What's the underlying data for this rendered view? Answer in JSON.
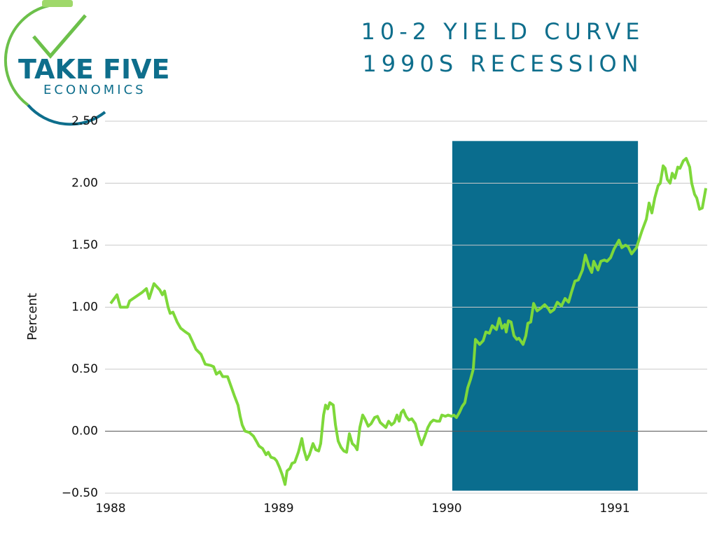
{
  "chart_data": {
    "type": "line",
    "title": "10-2 YIELD CURVE",
    "subtitle": "1990S RECESSION",
    "logo_text": [
      "TAKE FIVE",
      "ECONOMICS"
    ],
    "ylabel": "Percent",
    "xlim": [
      1988,
      1991.55
    ],
    "xticks": [
      1988,
      1989,
      1990,
      1991
    ],
    "ylim": [
      -0.5,
      2.5
    ],
    "yticks": [
      {
        "value": -0.5,
        "label": "−0.50"
      },
      {
        "value": 0,
        "label": "0.00"
      },
      {
        "value": 0.5,
        "label": "0.50"
      },
      {
        "value": 1,
        "label": "1.00"
      },
      {
        "value": 1.5,
        "label": "1.50"
      },
      {
        "value": 2,
        "label": "2.00"
      },
      {
        "value": 2.5,
        "label": "2.50"
      }
    ],
    "grid": true,
    "shaded_region": {
      "x": [
        1990.033,
        1991.138
      ],
      "y": [
        -0.48,
        2.34
      ],
      "color": "#0a6d8e"
    },
    "x": [
      1988.0,
      1988.038,
      1988.058,
      1988.1,
      1988.113,
      1988.188,
      1988.213,
      1988.229,
      1988.258,
      1988.292,
      1988.308,
      1988.321,
      1988.342,
      1988.354,
      1988.371,
      1988.396,
      1988.417,
      1988.446,
      1988.467,
      1988.488,
      1988.508,
      1988.538,
      1988.563,
      1988.596,
      1988.613,
      1988.629,
      1988.65,
      1988.667,
      1988.696,
      1988.717,
      1988.738,
      1988.758,
      1988.771,
      1988.783,
      1988.8,
      1988.825,
      1988.85,
      1988.867,
      1988.883,
      1988.904,
      1988.925,
      1988.938,
      1988.954,
      1988.975,
      1988.988,
      1989.004,
      1989.021,
      1989.038,
      1989.05,
      1989.067,
      1989.079,
      1989.096,
      1989.117,
      1989.138,
      1989.15,
      1989.167,
      1989.183,
      1989.204,
      1989.221,
      1989.238,
      1989.25,
      1989.267,
      1989.279,
      1989.292,
      1989.304,
      1989.325,
      1989.338,
      1989.354,
      1989.371,
      1989.388,
      1989.404,
      1989.421,
      1989.438,
      1989.454,
      1989.467,
      1989.483,
      1989.5,
      1989.513,
      1989.533,
      1989.55,
      1989.571,
      1989.588,
      1989.604,
      1989.621,
      1989.638,
      1989.654,
      1989.671,
      1989.688,
      1989.704,
      1989.717,
      1989.729,
      1989.742,
      1989.758,
      1989.775,
      1989.792,
      1989.813,
      1989.833,
      1989.85,
      1989.867,
      1989.888,
      1989.904,
      1989.921,
      1989.942,
      1989.958,
      1989.971,
      1989.992,
      1990.008,
      1990.029,
      1990.042,
      1990.058,
      1990.075,
      1990.092,
      1990.108,
      1990.125,
      1990.142,
      1990.158,
      1990.171,
      1990.196,
      1990.217,
      1990.233,
      1990.254,
      1990.271,
      1990.296,
      1990.313,
      1990.329,
      1990.346,
      1990.354,
      1990.367,
      1990.383,
      1990.4,
      1990.417,
      1990.429,
      1990.454,
      1990.471,
      1990.483,
      1990.5,
      1990.517,
      1990.538,
      1990.558,
      1990.583,
      1990.604,
      1990.617,
      1990.638,
      1990.658,
      1990.683,
      1990.704,
      1990.725,
      1990.742,
      1990.763,
      1990.783,
      1990.808,
      1990.825,
      1990.846,
      1990.863,
      1990.875,
      1990.9,
      1990.917,
      1990.938,
      1990.954,
      1990.975,
      1990.996,
      1991.025,
      1991.042,
      1991.063,
      1991.079,
      1991.1,
      1991.117,
      1991.129,
      1991.146,
      1991.163,
      1991.188,
      1991.204,
      1991.221,
      1991.238,
      1991.258,
      1991.271,
      1991.288,
      1991.3,
      1991.313,
      1991.329,
      1991.342,
      1991.358,
      1991.375,
      1991.388,
      1991.408,
      1991.425,
      1991.446,
      1991.458,
      1991.475,
      1991.488,
      1991.504,
      1991.521,
      1991.542
    ],
    "series": [
      {
        "color": "#7ed83a",
        "values": [
          1.03,
          1.1,
          1.0,
          1.0,
          1.05,
          1.12,
          1.15,
          1.07,
          1.19,
          1.14,
          1.1,
          1.13,
          1.0,
          0.95,
          0.96,
          0.88,
          0.83,
          0.8,
          0.78,
          0.72,
          0.66,
          0.62,
          0.54,
          0.53,
          0.52,
          0.46,
          0.48,
          0.44,
          0.44,
          0.36,
          0.28,
          0.21,
          0.12,
          0.05,
          0.0,
          -0.01,
          -0.04,
          -0.08,
          -0.12,
          -0.14,
          -0.19,
          -0.17,
          -0.21,
          -0.22,
          -0.24,
          -0.29,
          -0.35,
          -0.43,
          -0.32,
          -0.3,
          -0.26,
          -0.25,
          -0.17,
          -0.06,
          -0.15,
          -0.23,
          -0.19,
          -0.1,
          -0.15,
          -0.16,
          -0.1,
          0.13,
          0.21,
          0.18,
          0.23,
          0.21,
          0.05,
          -0.08,
          -0.13,
          -0.16,
          -0.17,
          -0.02,
          -0.1,
          -0.12,
          -0.15,
          0.03,
          0.13,
          0.1,
          0.04,
          0.06,
          0.11,
          0.12,
          0.07,
          0.05,
          0.03,
          0.08,
          0.05,
          0.07,
          0.13,
          0.08,
          0.15,
          0.17,
          0.12,
          0.09,
          0.1,
          0.06,
          -0.04,
          -0.11,
          -0.05,
          0.03,
          0.07,
          0.09,
          0.08,
          0.08,
          0.13,
          0.12,
          0.13,
          0.12,
          0.13,
          0.11,
          0.15,
          0.2,
          0.23,
          0.35,
          0.42,
          0.5,
          0.74,
          0.7,
          0.73,
          0.8,
          0.79,
          0.85,
          0.82,
          0.91,
          0.83,
          0.86,
          0.8,
          0.89,
          0.88,
          0.77,
          0.74,
          0.75,
          0.7,
          0.77,
          0.87,
          0.88,
          1.03,
          0.97,
          0.99,
          1.02,
          0.99,
          0.96,
          0.98,
          1.04,
          1.01,
          1.07,
          1.04,
          1.12,
          1.21,
          1.22,
          1.3,
          1.42,
          1.33,
          1.28,
          1.37,
          1.3,
          1.37,
          1.38,
          1.37,
          1.4,
          1.47,
          1.54,
          1.48,
          1.5,
          1.49,
          1.43,
          1.46,
          1.48,
          1.55,
          1.62,
          1.71,
          1.84,
          1.76,
          1.88,
          1.98,
          2.0,
          2.14,
          2.12,
          2.03,
          2.0,
          2.08,
          2.04,
          2.13,
          2.12,
          2.18,
          2.2,
          2.13,
          2.0,
          1.91,
          1.88,
          1.79,
          1.8,
          1.96
        ]
      }
    ]
  }
}
